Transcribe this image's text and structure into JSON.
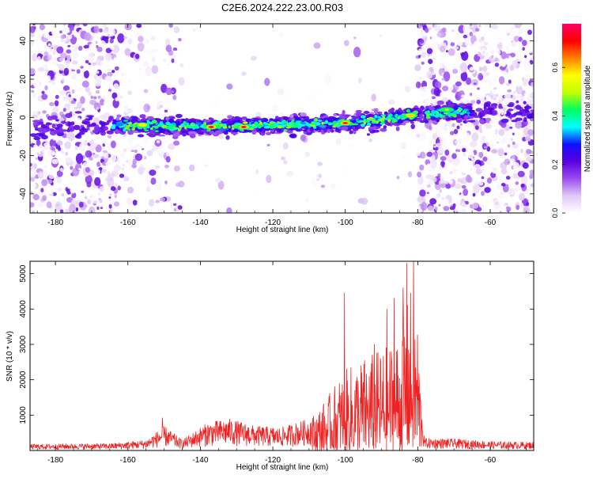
{
  "figure": {
    "title": "C2E6.2024.222.23.00.R03"
  },
  "chart_data": [
    {
      "type": "heatmap",
      "xlabel": "Height of straight line (km)",
      "ylabel": "Frequency (Hz)",
      "xlim": [
        -187,
        -48
      ],
      "ylim": [
        -50,
        49
      ],
      "xticks": [
        -180,
        -160,
        -140,
        -120,
        -100,
        -80,
        -60
      ],
      "yticks": [
        -40,
        -20,
        0,
        20,
        40
      ],
      "colorbar": {
        "label": "Normalized spectral amplitude",
        "range": [
          0,
          0.78
        ],
        "ticks": [
          0.0,
          0.2,
          0.4,
          0.6
        ],
        "tick_labels": [
          "0.0",
          "0.2",
          "0.4",
          "0.6"
        ],
        "colors": [
          "#ffffff",
          "#e0c8f4",
          "#9b4cf0",
          "#5a00e0",
          "#1010ff",
          "#00ffff",
          "#00ff60",
          "#c0ff00",
          "#ffff00",
          "#ff8000",
          "#ff0000",
          "#ff0066"
        ]
      },
      "noise_regions": [
        {
          "x_range": [
            -187,
            -163
          ],
          "density": "high"
        },
        {
          "x_range": [
            -163,
            -145
          ],
          "density": "medium"
        },
        {
          "x_range": [
            -145,
            -80
          ],
          "density": "low"
        },
        {
          "x_range": [
            -80,
            -48
          ],
          "density": "high"
        }
      ],
      "signal_band": {
        "x_range": [
          -164,
          -65
        ],
        "center_frequency": [
          {
            "x": -187,
            "y": -5
          },
          {
            "x": -160,
            "y": -4
          },
          {
            "x": -140,
            "y": -5
          },
          {
            "x": -120,
            "y": -4
          },
          {
            "x": -100,
            "y": -3
          },
          {
            "x": -85,
            "y": 0
          },
          {
            "x": -80,
            "y": 2
          },
          {
            "x": -65,
            "y": 3
          }
        ],
        "width_hz": 8,
        "peak_amplitude": 0.75,
        "hot_spots": [
          {
            "x": -137,
            "y": -5,
            "amplitude": 0.75
          },
          {
            "x": -128,
            "y": -5,
            "amplitude": 0.72
          },
          {
            "x": -100,
            "y": -3,
            "amplitude": 0.7
          },
          {
            "x": -156,
            "y": -4,
            "amplitude": 0.55
          },
          {
            "x": -82,
            "y": 1,
            "amplitude": 0.6
          },
          {
            "x": -72,
            "y": 4,
            "amplitude": 0.5
          }
        ]
      }
    },
    {
      "type": "line",
      "xlabel": "Height of straight line (km)",
      "ylabel": "SNR (10 * v/v)",
      "xlim": [
        -187,
        -48
      ],
      "ylim": [
        0,
        5350
      ],
      "xticks": [
        -180,
        -160,
        -140,
        -120,
        -100,
        -80,
        -60
      ],
      "yticks": [
        1000,
        2000,
        3000,
        4000,
        5000
      ],
      "color": "#ee2222",
      "envelope": [
        {
          "x": -187,
          "y": 180
        },
        {
          "x": -165,
          "y": 200
        },
        {
          "x": -155,
          "y": 300
        },
        {
          "x": -150,
          "y": 700
        },
        {
          "x": -145,
          "y": 300
        },
        {
          "x": -138,
          "y": 800
        },
        {
          "x": -132,
          "y": 900
        },
        {
          "x": -125,
          "y": 700
        },
        {
          "x": -118,
          "y": 650
        },
        {
          "x": -110,
          "y": 900
        },
        {
          "x": -105,
          "y": 1500
        },
        {
          "x": -101,
          "y": 2200
        },
        {
          "x": -96,
          "y": 2600
        },
        {
          "x": -90,
          "y": 2900
        },
        {
          "x": -85,
          "y": 3300
        },
        {
          "x": -82,
          "y": 4600
        },
        {
          "x": -80,
          "y": 3800
        },
        {
          "x": -78.5,
          "y": 350
        },
        {
          "x": -70,
          "y": 330
        },
        {
          "x": -60,
          "y": 260
        },
        {
          "x": -48,
          "y": 240
        }
      ],
      "peaks": [
        {
          "x": -150.5,
          "y": 920
        },
        {
          "x": -100.2,
          "y": 4450
        },
        {
          "x": -92,
          "y": 3000
        },
        {
          "x": -88.5,
          "y": 4000
        },
        {
          "x": -86.5,
          "y": 4300
        },
        {
          "x": -84,
          "y": 4600
        },
        {
          "x": -83,
          "y": 5300
        },
        {
          "x": -81.2,
          "y": 5350
        }
      ]
    }
  ]
}
